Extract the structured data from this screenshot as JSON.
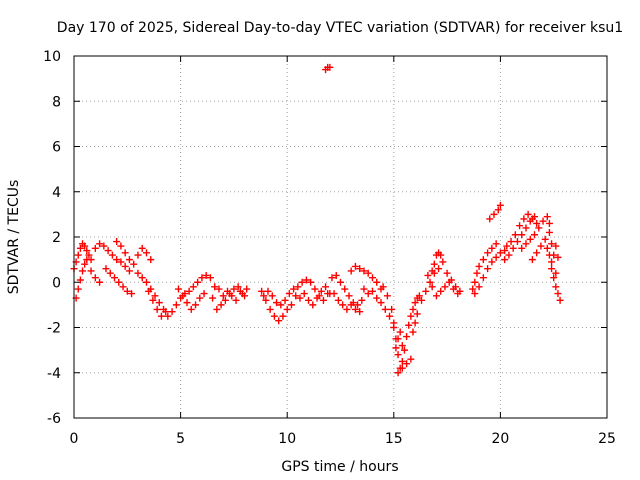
{
  "chart_data": {
    "type": "scatter",
    "title": "Day 170 of 2025, Sidereal Day-to-day VTEC variation (SDTVAR) for receiver ksu1",
    "xlabel": "GPS time / hours",
    "ylabel": "SDTVAR / TECUs",
    "xlim": [
      0,
      25
    ],
    "ylim": [
      -6,
      10
    ],
    "xticks": [
      0,
      5,
      10,
      15,
      20,
      25
    ],
    "yticks": [
      -6,
      -4,
      -2,
      0,
      2,
      4,
      6,
      8,
      10
    ],
    "grid": true,
    "marker": "+",
    "color": "#ff0000",
    "series": [
      {
        "name": "SDTVAR",
        "points": [
          [
            0.0,
            0.6
          ],
          [
            0.1,
            0.9
          ],
          [
            0.2,
            1.2
          ],
          [
            0.3,
            1.5
          ],
          [
            0.4,
            1.7
          ],
          [
            0.5,
            1.6
          ],
          [
            0.6,
            1.4
          ],
          [
            0.7,
            1.2
          ],
          [
            0.8,
            1.0
          ],
          [
            0.1,
            -0.7
          ],
          [
            0.2,
            -0.3
          ],
          [
            0.3,
            0.1
          ],
          [
            0.4,
            0.5
          ],
          [
            0.5,
            0.8
          ],
          [
            0.6,
            1.0
          ],
          [
            0.8,
            0.5
          ],
          [
            1.0,
            0.2
          ],
          [
            1.2,
            0.0
          ],
          [
            1.0,
            1.5
          ],
          [
            1.2,
            1.7
          ],
          [
            1.4,
            1.6
          ],
          [
            1.6,
            1.4
          ],
          [
            1.8,
            1.2
          ],
          [
            2.0,
            1.0
          ],
          [
            2.2,
            0.9
          ],
          [
            2.4,
            0.7
          ],
          [
            2.6,
            0.5
          ],
          [
            1.5,
            0.6
          ],
          [
            1.7,
            0.4
          ],
          [
            1.9,
            0.2
          ],
          [
            2.1,
            0.0
          ],
          [
            2.3,
            -0.2
          ],
          [
            2.5,
            -0.4
          ],
          [
            2.7,
            -0.5
          ],
          [
            2.0,
            1.8
          ],
          [
            2.2,
            1.6
          ],
          [
            2.4,
            1.3
          ],
          [
            2.6,
            1.0
          ],
          [
            2.8,
            0.8
          ],
          [
            3.0,
            1.2
          ],
          [
            3.2,
            1.5
          ],
          [
            3.4,
            1.3
          ],
          [
            3.6,
            1.0
          ],
          [
            3.0,
            0.4
          ],
          [
            3.2,
            0.2
          ],
          [
            3.4,
            0.0
          ],
          [
            3.6,
            -0.3
          ],
          [
            3.8,
            -0.6
          ],
          [
            4.0,
            -0.9
          ],
          [
            4.2,
            -1.2
          ],
          [
            4.4,
            -1.5
          ],
          [
            4.6,
            -1.3
          ],
          [
            3.5,
            -0.4
          ],
          [
            3.7,
            -0.8
          ],
          [
            3.9,
            -1.2
          ],
          [
            4.1,
            -1.5
          ],
          [
            4.3,
            -1.3
          ],
          [
            4.8,
            -1.0
          ],
          [
            5.0,
            -0.7
          ],
          [
            5.2,
            -0.5
          ],
          [
            5.4,
            -0.4
          ],
          [
            5.6,
            -0.2
          ],
          [
            5.8,
            0.0
          ],
          [
            6.0,
            0.2
          ],
          [
            6.2,
            0.3
          ],
          [
            6.4,
            0.2
          ],
          [
            4.9,
            -0.3
          ],
          [
            5.1,
            -0.6
          ],
          [
            5.3,
            -0.9
          ],
          [
            5.5,
            -1.2
          ],
          [
            5.7,
            -1.0
          ],
          [
            5.9,
            -0.7
          ],
          [
            6.1,
            -0.5
          ],
          [
            6.5,
            -0.7
          ],
          [
            6.7,
            -1.2
          ],
          [
            6.9,
            -1.0
          ],
          [
            7.1,
            -0.8
          ],
          [
            7.3,
            -0.5
          ],
          [
            7.5,
            -0.3
          ],
          [
            7.7,
            -0.2
          ],
          [
            7.9,
            -0.5
          ],
          [
            8.1,
            -0.3
          ],
          [
            6.6,
            -0.2
          ],
          [
            6.8,
            -0.3
          ],
          [
            7.0,
            -0.6
          ],
          [
            7.2,
            -0.4
          ],
          [
            7.4,
            -0.6
          ],
          [
            7.6,
            -0.8
          ],
          [
            7.8,
            -0.4
          ],
          [
            8.0,
            -0.6
          ],
          [
            8.8,
            -0.4
          ],
          [
            9.0,
            -0.8
          ],
          [
            9.2,
            -1.2
          ],
          [
            9.4,
            -1.5
          ],
          [
            9.6,
            -1.7
          ],
          [
            9.8,
            -1.5
          ],
          [
            10.0,
            -1.2
          ],
          [
            10.2,
            -1.0
          ],
          [
            10.4,
            -0.6
          ],
          [
            8.9,
            -0.6
          ],
          [
            9.1,
            -0.4
          ],
          [
            9.3,
            -0.6
          ],
          [
            9.5,
            -0.9
          ],
          [
            9.7,
            -1.0
          ],
          [
            9.9,
            -0.8
          ],
          [
            10.1,
            -0.5
          ],
          [
            10.3,
            -0.3
          ],
          [
            10.5,
            -0.2
          ],
          [
            10.7,
            0.0
          ],
          [
            10.9,
            0.1
          ],
          [
            11.1,
            0.0
          ],
          [
            11.3,
            -0.3
          ],
          [
            11.5,
            -0.6
          ],
          [
            11.7,
            -0.8
          ],
          [
            11.9,
            -0.5
          ],
          [
            10.6,
            -0.7
          ],
          [
            10.8,
            -0.5
          ],
          [
            11.0,
            -0.8
          ],
          [
            11.2,
            -1.0
          ],
          [
            11.4,
            -0.7
          ],
          [
            11.6,
            -0.4
          ],
          [
            11.8,
            -0.2
          ],
          [
            12.0,
            -0.5
          ],
          [
            11.8,
            9.4
          ],
          [
            11.9,
            9.5
          ],
          [
            12.0,
            9.5
          ],
          [
            12.1,
            0.2
          ],
          [
            12.3,
            0.3
          ],
          [
            12.5,
            0.0
          ],
          [
            12.7,
            -0.3
          ],
          [
            12.9,
            -0.6
          ],
          [
            13.1,
            -0.9
          ],
          [
            13.3,
            -1.0
          ],
          [
            13.5,
            -0.8
          ],
          [
            12.2,
            -0.5
          ],
          [
            12.4,
            -0.8
          ],
          [
            12.6,
            -1.0
          ],
          [
            12.8,
            -1.2
          ],
          [
            13.0,
            -1.0
          ],
          [
            13.2,
            -1.2
          ],
          [
            13.4,
            -1.3
          ],
          [
            13.0,
            0.5
          ],
          [
            13.2,
            0.7
          ],
          [
            13.4,
            0.6
          ],
          [
            13.6,
            0.5
          ],
          [
            13.8,
            0.4
          ],
          [
            14.0,
            0.2
          ],
          [
            14.2,
            0.0
          ],
          [
            14.4,
            -0.3
          ],
          [
            13.6,
            -0.3
          ],
          [
            13.8,
            -0.5
          ],
          [
            14.0,
            -0.4
          ],
          [
            14.2,
            -0.7
          ],
          [
            14.4,
            -0.9
          ],
          [
            14.6,
            -1.2
          ],
          [
            14.8,
            -1.5
          ],
          [
            15.0,
            -2.0
          ],
          [
            14.5,
            -0.2
          ],
          [
            14.7,
            -0.6
          ],
          [
            14.9,
            -1.2
          ],
          [
            15.0,
            -1.8
          ],
          [
            15.1,
            -2.5
          ],
          [
            15.2,
            -3.2
          ],
          [
            15.3,
            -3.8
          ],
          [
            15.4,
            -3.5
          ],
          [
            15.1,
            -2.9
          ],
          [
            15.2,
            -2.5
          ],
          [
            15.3,
            -2.2
          ],
          [
            15.4,
            -2.8
          ],
          [
            15.5,
            -3.0
          ],
          [
            15.6,
            -2.4
          ],
          [
            15.7,
            -1.9
          ],
          [
            15.8,
            -1.5
          ],
          [
            15.2,
            -4.0
          ],
          [
            15.4,
            -3.8
          ],
          [
            15.6,
            -3.6
          ],
          [
            15.8,
            -3.4
          ],
          [
            15.9,
            -1.2
          ],
          [
            16.0,
            -0.9
          ],
          [
            16.1,
            -0.7
          ],
          [
            16.2,
            -0.6
          ],
          [
            15.9,
            -2.2
          ],
          [
            16.0,
            -1.8
          ],
          [
            16.1,
            -1.4
          ],
          [
            16.3,
            -0.8
          ],
          [
            16.5,
            -0.4
          ],
          [
            16.7,
            0.0
          ],
          [
            16.8,
            0.5
          ],
          [
            16.9,
            0.8
          ],
          [
            17.0,
            1.2
          ],
          [
            17.1,
            1.3
          ],
          [
            17.2,
            1.2
          ],
          [
            16.6,
            0.3
          ],
          [
            16.8,
            -0.2
          ],
          [
            17.0,
            -0.6
          ],
          [
            17.2,
            -0.4
          ],
          [
            17.4,
            -0.2
          ],
          [
            17.6,
            0.0
          ],
          [
            17.8,
            -0.3
          ],
          [
            18.0,
            -0.5
          ],
          [
            16.9,
            0.4
          ],
          [
            17.1,
            0.6
          ],
          [
            17.3,
            0.9
          ],
          [
            17.5,
            0.4
          ],
          [
            17.7,
            0.1
          ],
          [
            17.9,
            -0.2
          ],
          [
            18.1,
            -0.4
          ],
          [
            18.7,
            -0.3
          ],
          [
            18.8,
            0.0
          ],
          [
            18.9,
            0.4
          ],
          [
            19.0,
            0.7
          ],
          [
            19.2,
            1.0
          ],
          [
            19.4,
            1.3
          ],
          [
            19.6,
            1.5
          ],
          [
            19.8,
            1.7
          ],
          [
            18.8,
            -0.5
          ],
          [
            19.0,
            -0.2
          ],
          [
            19.2,
            0.2
          ],
          [
            19.4,
            0.6
          ],
          [
            19.6,
            0.9
          ],
          [
            19.8,
            1.1
          ],
          [
            20.0,
            1.3
          ],
          [
            20.2,
            1.4
          ],
          [
            19.5,
            2.8
          ],
          [
            19.7,
            3.0
          ],
          [
            19.9,
            3.2
          ],
          [
            20.0,
            3.4
          ],
          [
            20.2,
            1.0
          ],
          [
            20.4,
            1.2
          ],
          [
            20.6,
            1.5
          ],
          [
            20.8,
            1.8
          ],
          [
            21.0,
            2.1
          ],
          [
            21.2,
            2.4
          ],
          [
            21.4,
            2.7
          ],
          [
            21.6,
            2.9
          ],
          [
            20.3,
            1.6
          ],
          [
            20.5,
            1.8
          ],
          [
            20.7,
            2.1
          ],
          [
            20.9,
            2.5
          ],
          [
            21.1,
            2.8
          ],
          [
            21.3,
            3.0
          ],
          [
            21.5,
            2.8
          ],
          [
            21.7,
            2.6
          ],
          [
            21.0,
            1.5
          ],
          [
            21.2,
            1.7
          ],
          [
            21.4,
            1.9
          ],
          [
            21.6,
            2.1
          ],
          [
            21.8,
            2.4
          ],
          [
            22.0,
            2.7
          ],
          [
            22.2,
            2.9
          ],
          [
            22.3,
            2.6
          ],
          [
            21.5,
            1.0
          ],
          [
            21.7,
            1.3
          ],
          [
            21.9,
            1.6
          ],
          [
            22.1,
            1.9
          ],
          [
            22.3,
            2.2
          ],
          [
            22.4,
            1.7
          ],
          [
            22.2,
            1.5
          ],
          [
            22.3,
            1.2
          ],
          [
            22.4,
            0.9
          ],
          [
            22.5,
            1.2
          ],
          [
            22.6,
            1.6
          ],
          [
            22.7,
            1.1
          ],
          [
            22.6,
            0.4
          ],
          [
            22.4,
            0.6
          ],
          [
            22.5,
            0.2
          ],
          [
            22.6,
            -0.2
          ],
          [
            22.7,
            -0.5
          ],
          [
            22.8,
            -0.8
          ]
        ]
      }
    ]
  }
}
